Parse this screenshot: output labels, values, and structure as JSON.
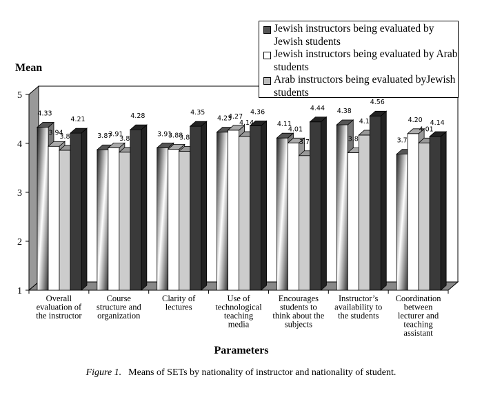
{
  "chart_data": {
    "type": "bar",
    "style": "3d-clustered",
    "title": "",
    "ylabel": "Mean",
    "xlabel": "Parameters",
    "ylim": [
      1,
      5
    ],
    "yticks": [
      1,
      2,
      3,
      4,
      5
    ],
    "grid": false,
    "legend_placement": "top-right",
    "categories": [
      [
        "Overall",
        "evaluation of",
        "the instructor"
      ],
      [
        "Course",
        "structure and",
        "organization"
      ],
      [
        "Clarity of",
        "lectures"
      ],
      [
        "Use of",
        "technological",
        "teaching",
        "media"
      ],
      [
        "Encourages",
        "students to",
        "think about the",
        "subjects"
      ],
      [
        "Instructor’s",
        "availability to",
        "the students"
      ],
      [
        "Coordination",
        "between",
        "lecturer and",
        "teaching",
        "assistant"
      ]
    ],
    "series": [
      {
        "name": "Jewish instructors being evaluated by Jewish students",
        "color": "#555555",
        "values": [
          4.33,
          3.87,
          3.91,
          4.23,
          4.11,
          4.38,
          3.78
        ]
      },
      {
        "name": "Jewish instructors being evaluated by Arab students",
        "color": "#ffffff",
        "values": [
          3.94,
          3.91,
          3.88,
          4.27,
          4.01,
          3.81,
          4.2
        ]
      },
      {
        "name": "Arab instructors being evaluated byJewish students",
        "color": "#cccccc",
        "values": [
          3.86,
          3.82,
          3.84,
          4.14,
          3.75,
          4.17,
          4.01
        ]
      },
      {
        "color": "#3a3a3a",
        "values": [
          4.21,
          4.28,
          4.35,
          4.36,
          4.44,
          4.56,
          4.14
        ]
      }
    ]
  },
  "caption": {
    "label": "Figure 1.",
    "text": "Means of SETs by nationality of instructor and nationality of student."
  }
}
